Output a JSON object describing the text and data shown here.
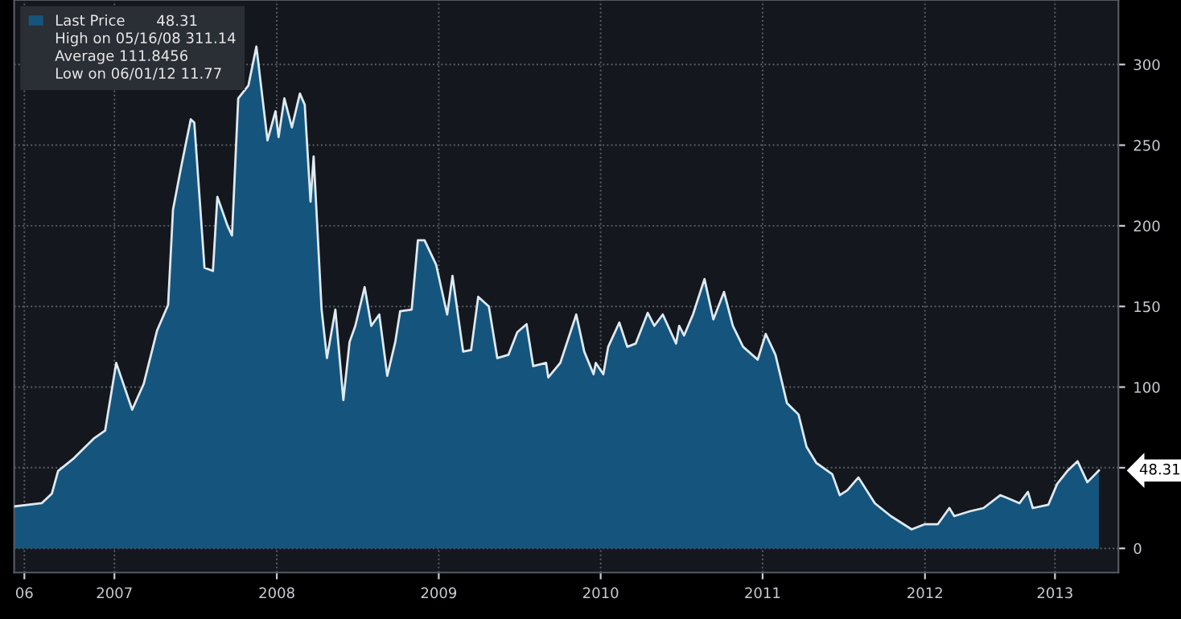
{
  "chart_data": {
    "type": "area",
    "x": [
      "2006-11-17",
      "2007-01-18",
      "2007-02-10",
      "2007-02-24",
      "2007-04-01",
      "2007-05-15",
      "2007-06-10",
      "2007-07-05",
      "2007-08-10",
      "2007-09-05",
      "2007-10-05",
      "2007-10-30",
      "2007-11-10",
      "2007-11-28",
      "2007-12-20",
      "2007-12-28",
      "2008-01-20",
      "2008-02-08",
      "2008-02-18",
      "2008-03-12",
      "2008-03-22",
      "2008-04-05",
      "2008-04-28",
      "2008-05-16",
      "2008-06-10",
      "2008-06-28",
      "2008-07-05",
      "2008-07-18",
      "2008-08-04",
      "2008-08-22",
      "2008-09-02",
      "2008-09-15",
      "2008-09-22",
      "2008-10-10",
      "2008-10-22",
      "2008-11-10",
      "2008-11-28",
      "2008-12-12",
      "2008-12-25",
      "2009-01-15",
      "2009-01-30",
      "2009-02-17",
      "2009-03-07",
      "2009-03-25",
      "2009-04-05",
      "2009-05-01",
      "2009-05-15",
      "2009-05-30",
      "2009-06-25",
      "2009-07-20",
      "2009-08-01",
      "2009-08-25",
      "2009-09-12",
      "2009-09-28",
      "2009-10-22",
      "2009-11-10",
      "2009-12-05",
      "2009-12-25",
      "2010-01-15",
      "2010-01-30",
      "2010-02-28",
      "2010-03-05",
      "2010-04-01",
      "2010-05-07",
      "2010-05-25",
      "2010-06-15",
      "2010-06-20",
      "2010-07-07",
      "2010-07-18",
      "2010-08-12",
      "2010-08-30",
      "2010-09-18",
      "2010-10-15",
      "2010-10-30",
      "2010-11-18",
      "2010-12-18",
      "2010-12-25",
      "2011-01-05",
      "2011-01-25",
      "2011-02-20",
      "2011-03-12",
      "2011-04-05",
      "2011-04-25",
      "2011-05-18",
      "2011-06-20",
      "2011-07-08",
      "2011-07-30",
      "2011-08-25",
      "2011-09-20",
      "2011-10-08",
      "2011-10-30",
      "2011-12-05",
      "2011-12-22",
      "2012-01-08",
      "2012-02-02",
      "2012-03-10",
      "2012-04-15",
      "2012-06-01",
      "2012-07-01",
      "2012-07-30",
      "2012-08-25",
      "2012-09-05",
      "2012-10-10",
      "2012-11-10",
      "2012-12-18",
      "2013-01-05",
      "2013-01-30",
      "2013-02-18",
      "2013-03-01",
      "2013-04-05",
      "2013-04-25",
      "2013-05-18",
      "2013-06-10",
      "2013-07-02",
      "2013-07-28"
    ],
    "series": [
      {
        "name": "Last Price",
        "color": "#15557d",
        "values": [
          26,
          28,
          34,
          48,
          56,
          68,
          73,
          115,
          86,
          102,
          135,
          151,
          210,
          236,
          266,
          264,
          174,
          172,
          218,
          200,
          194,
          279,
          287,
          311.14,
          253,
          271,
          255,
          279,
          261,
          282,
          275,
          215,
          243,
          148,
          118,
          148,
          92,
          128,
          138,
          162,
          138,
          145,
          107,
          128,
          147,
          148,
          191,
          191,
          176,
          145,
          169,
          122,
          123,
          156,
          150,
          118,
          120,
          134,
          139,
          113,
          115,
          106,
          115,
          145,
          122,
          108,
          115,
          108,
          125,
          140,
          125,
          127,
          146,
          138,
          145,
          127,
          138,
          132,
          145,
          167,
          142,
          159,
          138,
          125,
          117,
          133,
          120,
          90,
          83,
          63,
          53,
          46,
          33,
          36,
          44,
          28,
          20,
          11.77,
          15,
          15,
          25,
          20,
          23,
          25,
          33,
          31,
          28,
          35,
          25,
          27,
          40,
          48,
          54,
          41,
          48.31
        ]
      }
    ],
    "xlim": [
      "2006-11-17",
      "2013-09-10"
    ],
    "xticks": [
      {
        "value": "2006-12-10",
        "label": "06"
      },
      {
        "value": "2007-07-01",
        "label": "2007"
      },
      {
        "value": "2008-07-01",
        "label": "2008"
      },
      {
        "value": "2009-07-01",
        "label": "2009"
      },
      {
        "value": "2010-07-01",
        "label": "2010"
      },
      {
        "value": "2011-07-01",
        "label": "2011"
      },
      {
        "value": "2012-07-01",
        "label": "2012"
      },
      {
        "value": "2013-04-20",
        "label": "2013"
      }
    ],
    "ylim": [
      -15,
      340
    ],
    "yticks": [
      0,
      {
        "value": 50,
        "label": null
      },
      100,
      150,
      200,
      250,
      300
    ],
    "grid": true,
    "legend": "top left",
    "annotations": [
      {
        "text": "48.31",
        "x": "2013-07-28",
        "y": 48.31
      },
      "48.31",
      "High on 05/16/08 311.14",
      "Average 111.8456",
      "Low on 06/01/12 11.77"
    ]
  }
}
